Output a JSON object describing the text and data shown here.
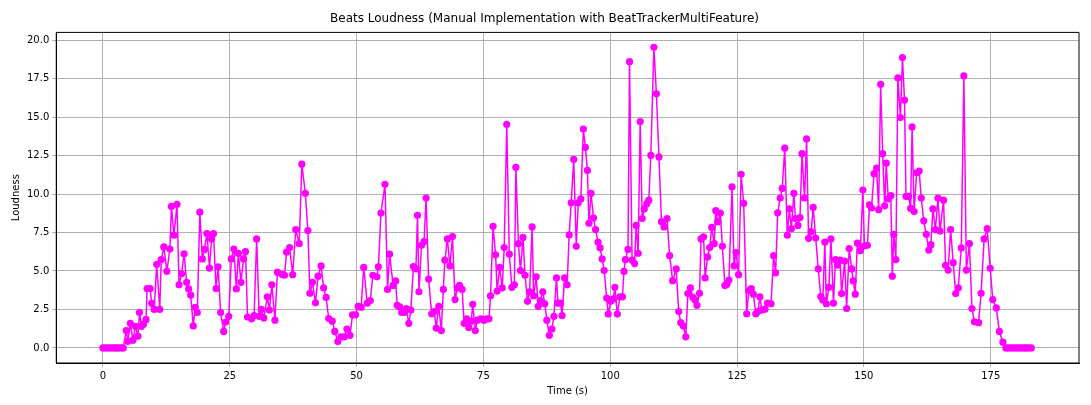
{
  "chart_data": {
    "type": "line",
    "title": "Beats Loudness (Manual Implementation with BeatTrackerMultiFeature)",
    "xlabel": "Time (s)",
    "ylabel": "Loudness",
    "xlim": [
      -9.2,
      192.4
    ],
    "ylim": [
      -0.98,
      20.5
    ],
    "xticks": [
      0,
      25,
      50,
      75,
      100,
      125,
      150,
      175
    ],
    "yticks": [
      {
        "value": 0,
        "label": "0.0"
      },
      {
        "value": 2.5,
        "label": "2.5"
      },
      {
        "value": 5,
        "label": "5.0"
      },
      {
        "value": 7.5,
        "label": "7.5"
      },
      {
        "value": 10,
        "label": "10.0"
      },
      {
        "value": 12.5,
        "label": "12.5"
      },
      {
        "value": 15,
        "label": "15.0"
      },
      {
        "value": 17.5,
        "label": "17.5"
      },
      {
        "value": 20,
        "label": "20.0"
      }
    ],
    "grid": true,
    "legend": false,
    "marker": "circle",
    "line_style": "solid",
    "series": [
      {
        "color": "#ff00ff",
        "x": [
          0,
          0.5,
          1,
          1.5,
          2,
          2.5,
          3,
          3.5,
          4,
          4.6,
          4.9,
          5.4,
          5.9,
          6.4,
          6.9,
          7.2,
          7.6,
          8.0,
          8.5,
          8.7,
          9.3,
          9.6,
          10.1,
          10.6,
          11.2,
          11.5,
          12.0,
          12.6,
          13.2,
          13.5,
          14.0,
          14.6,
          15.0,
          15.5,
          16.0,
          16.5,
          16.9,
          17.3,
          17.8,
          18.2,
          18.6,
          19.1,
          19.6,
          20.0,
          20.5,
          21.0,
          21.4,
          21.8,
          22.3,
          22.7,
          23.2,
          23.8,
          24.2,
          24.8,
          25.3,
          25.8,
          26.3,
          26.7,
          27.2,
          27.7,
          28.1,
          28.5,
          29.3,
          29.8,
          30.3,
          30.8,
          31.2,
          31.7,
          32.4,
          32.8,
          33.3,
          33.9,
          34.4,
          35.3,
          35.8,
          36.2,
          36.8,
          37.4,
          38.0,
          38.7,
          39.2,
          39.9,
          40.4,
          40.8,
          41.3,
          41.9,
          42.4,
          43.0,
          43.5,
          44.0,
          44.5,
          45.2,
          45.7,
          46.3,
          46.9,
          47.6,
          48.1,
          48.7,
          49.2,
          49.8,
          50.3,
          50.9,
          51.4,
          52.1,
          52.7,
          53.2,
          54.0,
          54.3,
          54.8,
          55.6,
          56.1,
          56.5,
          57.2,
          57.7,
          58.0,
          58.5,
          58.9,
          59.4,
          59.8,
          60.3,
          60.7,
          61.2,
          61.7,
          62.0,
          62.3,
          62.8,
          63.3,
          63.7,
          64.2,
          64.8,
          65.3,
          65.7,
          66.2,
          66.7,
          67.1,
          67.4,
          67.9,
          68.4,
          68.9,
          69.4,
          69.9,
          70.3,
          70.8,
          71.2,
          71.7,
          72.1,
          72.6,
          72.9,
          73.4,
          73.8,
          74.5,
          75.1,
          75.6,
          76.1,
          76.4,
          76.9,
          77.4,
          77.7,
          78.2,
          78.7,
          79.1,
          79.6,
          80.1,
          80.6,
          81.1,
          81.4,
          81.9,
          82.3,
          82.8,
          83.2,
          83.7,
          84.1,
          84.6,
          84.9,
          85.4,
          85.8,
          86.2,
          86.7,
          87.1,
          87.5,
          88.0,
          88.5,
          88.9,
          89.4,
          89.7,
          90.2,
          90.5,
          91.0,
          91.5,
          91.9,
          92.3,
          92.8,
          93.3,
          93.7,
          94.2,
          94.7,
          95.1,
          95.5,
          95.8,
          96.2,
          96.7,
          97.1,
          97.6,
          98.0,
          98.4,
          98.8,
          99.3,
          99.6,
          100.1,
          100.6,
          100.9,
          101.4,
          101.9,
          102.4,
          102.7,
          103.0,
          103.5,
          103.8,
          104.3,
          104.8,
          105.1,
          105.5,
          105.9,
          106.3,
          106.7,
          107.2,
          107.6,
          108.0,
          108.6,
          109.1,
          109.6,
          110.1,
          110.6,
          111.2,
          111.7,
          112.3,
          113.0,
          113.5,
          113.9,
          114.4,
          114.9,
          115.3,
          115.8,
          116.3,
          116.7,
          117.1,
          117.6,
          117.9,
          118.4,
          118.7,
          119.2,
          119.6,
          120.0,
          120.5,
          120.8,
          121.2,
          121.7,
          122.1,
          122.6,
          123.0,
          123.4,
          124.0,
          124.4,
          124.8,
          125.3,
          125.8,
          126.3,
          126.9,
          127.3,
          127.8,
          128.2,
          128.7,
          129.1,
          129.5,
          129.9,
          130.5,
          131.0,
          131.7,
          132.2,
          132.6,
          133.0,
          133.5,
          133.9,
          134.4,
          134.9,
          135.3,
          135.7,
          136.2,
          136.5,
          137.0,
          137.4,
          137.8,
          138.3,
          138.7,
          139.1,
          139.6,
          140.0,
          140.5,
          141.0,
          141.5,
          141.9,
          142.3,
          142.6,
          143.1,
          143.5,
          144.0,
          144.4,
          144.8,
          145.3,
          145.6,
          146.2,
          146.6,
          147.1,
          147.6,
          147.9,
          148.3,
          148.7,
          149.3,
          149.8,
          150.1,
          150.7,
          151.1,
          151.5,
          152.0,
          152.5,
          152.9,
          153.3,
          153.7,
          154.1,
          154.4,
          154.8,
          155.3,
          155.6,
          155.9,
          156.3,
          156.7,
          157.2,
          157.6,
          158.0,
          158.3,
          158.8,
          159.2,
          159.5,
          159.9,
          160.4,
          160.9,
          161.3,
          161.8,
          162.3,
          162.8,
          163.2,
          163.6,
          164.1,
          164.6,
          165.0,
          165.7,
          166.1,
          166.6,
          167.1,
          167.6,
          168.1,
          168.6,
          169.2,
          169.7,
          170.2,
          170.8,
          171.3,
          171.8,
          172.6,
          173.1,
          173.7,
          174.3,
          174.9,
          175.4,
          176.1,
          176.7,
          177.4,
          178.0,
          178.5,
          179.0,
          179.5,
          180.0,
          180.5,
          181.0,
          181.5,
          182.0,
          182.5,
          183.0
        ],
        "values": [
          0,
          0,
          0,
          0,
          0,
          0,
          0,
          0,
          0,
          1.13,
          0.43,
          1.6,
          0.5,
          1.4,
          0.76,
          2.3,
          1.4,
          1.54,
          1.85,
          3.86,
          3.86,
          2.9,
          2.5,
          5.43,
          2.5,
          5.74,
          6.56,
          4.98,
          6.42,
          9.19,
          7.32,
          9.33,
          4.1,
          4.82,
          6.11,
          4.26,
          3.83,
          3.43,
          1.43,
          2.63,
          2.3,
          8.82,
          5.78,
          6.4,
          7.43,
          5.19,
          7.08,
          7.43,
          3.86,
          5.27,
          2.3,
          1.07,
          1.68,
          2.05,
          5.78,
          6.42,
          3.83,
          6.15,
          4.26,
          5.78,
          6.26,
          2.01,
          1.89,
          2.1,
          7.08,
          2.05,
          2.5,
          1.95,
          3.32,
          2.46,
          4.1,
          1.8,
          4.92,
          4.78,
          4.72,
          6.22,
          6.52,
          4.76,
          7.69,
          6.77,
          11.94,
          10.05,
          7.63,
          3.55,
          4.26,
          2.93,
          4.66,
          5.33,
          3.9,
          3.28,
          1.91,
          1.74,
          1.07,
          0.41,
          0.72,
          0.72,
          1.23,
          0.82,
          2.15,
          2.15,
          2.7,
          2.63,
          5.23,
          2.91,
          3.08,
          4.72,
          4.62,
          5.27,
          8.76,
          10.63,
          3.8,
          6.09,
          4.06,
          4.35,
          2.77,
          2.67,
          2.3,
          2.3,
          2.56,
          1.6,
          2.46,
          5.29,
          5.13,
          8.62,
          3.65,
          6.67,
          6.91,
          9.74,
          4.47,
          2.22,
          2.36,
          1.29,
          2.7,
          1.13,
          3.8,
          5.7,
          7.08,
          5.33,
          7.24,
          3.14,
          3.9,
          4.06,
          3.8,
          1.6,
          1.89,
          1.33,
          1.74,
          2.83,
          1.13,
          1.8,
          1.89,
          1.8,
          1.89,
          1.89,
          3.38,
          7.9,
          6.05,
          3.69,
          5.23,
          3.9,
          6.52,
          14.52,
          6.09,
          3.94,
          4.1,
          11.74,
          6.77,
          5.03,
          7.18,
          4.72,
          3.03,
          3.65,
          7.86,
          3.38,
          4.62,
          2.7,
          3.08,
          3.65,
          2.87,
          1.8,
          0.82,
          1.23,
          2.05,
          4.55,
          2.91,
          2.91,
          2.1,
          4.55,
          4.1,
          7.34,
          9.43,
          12.25,
          6.6,
          9.43,
          9.68,
          14.22,
          13.03,
          11.53,
          8.1,
          10.05,
          8.45,
          7.69,
          6.87,
          6.5,
          5.78,
          5.03,
          3.24,
          2.2,
          3.03,
          3.18,
          3.94,
          2.2,
          3.32,
          3.32,
          4.97,
          5.74,
          6.4,
          18.6,
          5.7,
          5.48,
          7.96,
          6.15,
          14.71,
          8.41,
          9.03,
          9.37,
          9.6,
          12.51,
          19.53,
          16.51,
          12.41,
          8.2,
          7.86,
          8.41,
          5.99,
          4.37,
          5.13,
          2.36,
          1.64,
          1.43,
          0.72,
          3.53,
          3.9,
          3.28,
          3.12,
          2.77,
          3.55,
          7.08,
          7.22,
          4.55,
          5.91,
          6.52,
          7.83,
          6.77,
          8.92,
          8.2,
          8.76,
          6.6,
          4.06,
          4.14,
          4.41,
          10.46,
          5.33,
          6.2,
          4.76,
          11.28,
          9.4,
          2.22,
          3.73,
          3.86,
          3.49,
          2.22,
          2.36,
          3.32,
          2.46,
          2.52,
          2.91,
          2.87,
          5.99,
          4.88,
          8.78,
          9.74,
          10.36,
          12.98,
          7.32,
          9.03,
          7.74,
          10.05,
          8.41,
          7.96,
          8.47,
          12.62,
          9.74,
          13.58,
          7.12,
          7.55,
          9.13,
          7.14,
          5.13,
          3.34,
          3.12,
          6.87,
          2.87,
          3.94,
          7.08,
          2.91,
          5.74,
          5.37,
          5.7,
          3.53,
          5.64,
          2.56,
          6.46,
          5.13,
          4.35,
          3.49,
          6.81,
          6.32,
          10.26,
          6.63,
          6.67,
          9.29,
          9.09,
          11.32,
          11.69,
          8.98,
          17.13,
          12.62,
          9.23,
          12.0,
          9.68,
          9.89,
          4.66,
          7.38,
          5.74,
          17.54,
          14.97,
          18.87,
          16.1,
          9.85,
          9.85,
          9.06,
          14.36,
          8.86,
          11.38,
          11.49,
          9.74,
          8.26,
          7.38,
          6.36,
          6.71,
          9.03,
          7.69,
          9.74,
          7.59,
          9.6,
          5.37,
          5.06,
          7.69,
          5.54,
          3.53,
          3.9,
          6.5,
          17.68,
          5.06,
          6.77,
          2.56,
          1.7,
          1.64,
          3.55,
          7.08,
          7.75,
          5.17,
          3.14,
          2.6,
          1.07,
          0.37,
          0,
          0,
          0,
          0,
          0,
          0,
          0,
          0,
          0,
          0,
          0
        ]
      }
    ]
  }
}
